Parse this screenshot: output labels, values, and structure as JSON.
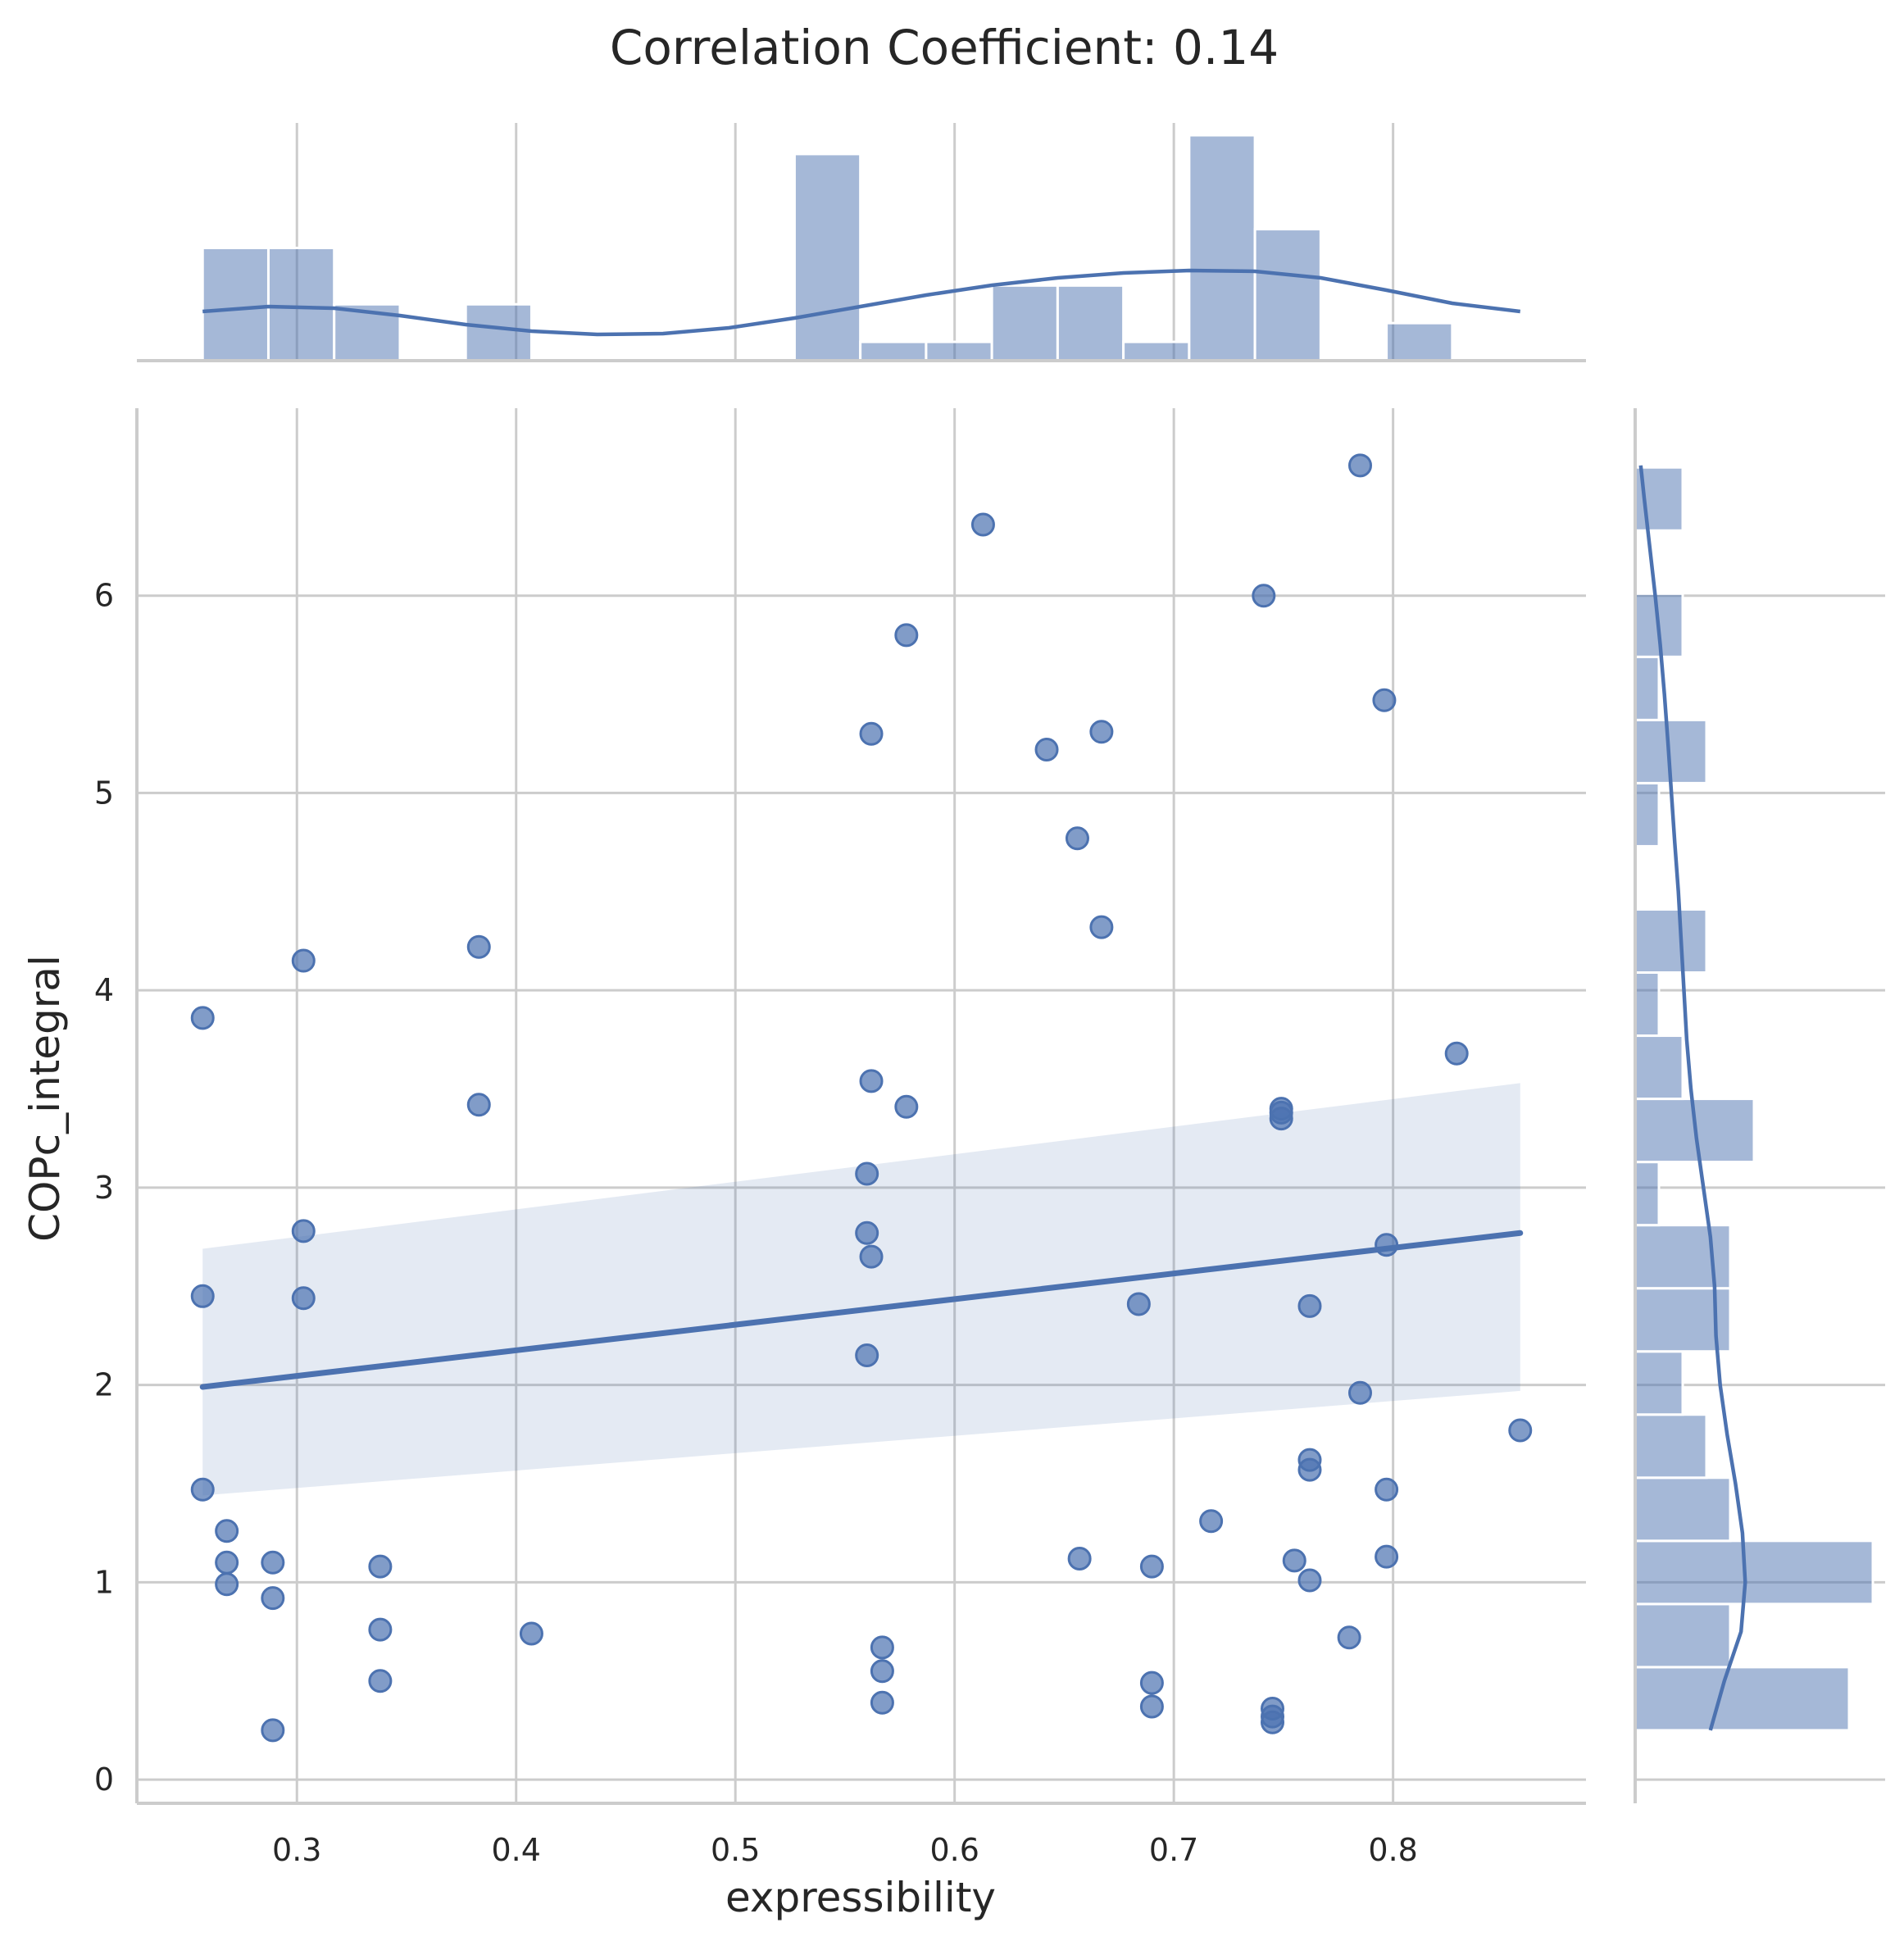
{
  "chart_data": {
    "type": "scatter",
    "title": "Correlation Coefficient: 0.14",
    "xlabel": "expressibility",
    "ylabel": "COPc_integral",
    "xlim": [
      0.227,
      0.888
    ],
    "ylim": [
      -0.12,
      6.95
    ],
    "xticks": [
      "0.3",
      "0.4",
      "0.5",
      "0.6",
      "0.7",
      "0.8"
    ],
    "yticks": [
      "0",
      "1",
      "2",
      "3",
      "4",
      "5",
      "6"
    ],
    "grid": true,
    "color": "#4c72b0",
    "points": [
      [
        0.257,
        3.86
      ],
      [
        0.257,
        2.45
      ],
      [
        0.257,
        1.47
      ],
      [
        0.268,
        1.26
      ],
      [
        0.268,
        1.1
      ],
      [
        0.268,
        0.99
      ],
      [
        0.289,
        1.1
      ],
      [
        0.289,
        0.92
      ],
      [
        0.289,
        0.25
      ],
      [
        0.303,
        4.15
      ],
      [
        0.303,
        2.78
      ],
      [
        0.303,
        2.44
      ],
      [
        0.338,
        1.08
      ],
      [
        0.338,
        0.76
      ],
      [
        0.338,
        0.5
      ],
      [
        0.383,
        4.22
      ],
      [
        0.383,
        3.42
      ],
      [
        0.407,
        0.74
      ],
      [
        0.56,
        3.07
      ],
      [
        0.56,
        2.77
      ],
      [
        0.56,
        2.15
      ],
      [
        0.562,
        5.3
      ],
      [
        0.562,
        3.54
      ],
      [
        0.562,
        2.65
      ],
      [
        0.567,
        0.67
      ],
      [
        0.567,
        0.55
      ],
      [
        0.567,
        0.39
      ],
      [
        0.578,
        5.8
      ],
      [
        0.578,
        3.41
      ],
      [
        0.613,
        6.36
      ],
      [
        0.642,
        5.22
      ],
      [
        0.656,
        4.77
      ],
      [
        0.657,
        1.12
      ],
      [
        0.667,
        5.31
      ],
      [
        0.667,
        4.32
      ],
      [
        0.684,
        2.41
      ],
      [
        0.69,
        1.08
      ],
      [
        0.69,
        0.49
      ],
      [
        0.69,
        0.37
      ],
      [
        0.717,
        1.31
      ],
      [
        0.741,
        6.0
      ],
      [
        0.745,
        0.36
      ],
      [
        0.745,
        0.32
      ],
      [
        0.745,
        0.29
      ],
      [
        0.749,
        3.4
      ],
      [
        0.749,
        3.38
      ],
      [
        0.749,
        3.35
      ],
      [
        0.755,
        1.11
      ],
      [
        0.762,
        2.4
      ],
      [
        0.762,
        1.62
      ],
      [
        0.762,
        1.57
      ],
      [
        0.762,
        1.01
      ],
      [
        0.78,
        0.72
      ],
      [
        0.785,
        6.66
      ],
      [
        0.785,
        1.96
      ],
      [
        0.796,
        5.47
      ],
      [
        0.797,
        2.71
      ],
      [
        0.797,
        1.47
      ],
      [
        0.797,
        1.13
      ],
      [
        0.829,
        3.68
      ],
      [
        0.858,
        1.77
      ]
    ],
    "regression": {
      "x": [
        0.257,
        0.858
      ],
      "y": [
        1.99,
        2.77
      ],
      "ci_lower": [
        1.44,
        1.97
      ],
      "ci_upper": [
        2.69,
        3.53
      ]
    },
    "x_histogram": {
      "bin_edges": [
        0.257,
        0.287,
        0.317,
        0.347,
        0.377,
        0.407,
        0.437,
        0.467,
        0.497,
        0.527,
        0.557,
        0.587,
        0.617,
        0.647,
        0.677,
        0.707,
        0.737,
        0.767,
        0.797,
        0.827,
        0.857
      ],
      "counts": [
        6,
        6,
        3,
        0,
        3,
        0,
        0,
        0,
        0,
        11,
        1,
        1,
        4,
        4,
        1,
        12,
        7,
        0,
        2,
        0
      ],
      "kde_x": [
        0.257,
        0.287,
        0.317,
        0.347,
        0.377,
        0.407,
        0.437,
        0.467,
        0.497,
        0.527,
        0.557,
        0.587,
        0.617,
        0.647,
        0.677,
        0.707,
        0.737,
        0.767,
        0.797,
        0.827,
        0.858
      ],
      "kde_density": [
        0.6,
        0.66,
        0.64,
        0.55,
        0.44,
        0.36,
        0.32,
        0.33,
        0.4,
        0.52,
        0.66,
        0.8,
        0.92,
        1.01,
        1.07,
        1.1,
        1.09,
        1.01,
        0.86,
        0.7,
        0.6
      ]
    },
    "y_histogram": {
      "bin_edges": [
        0.25,
        0.57,
        0.89,
        1.21,
        1.53,
        1.85,
        2.17,
        2.49,
        2.81,
        3.13,
        3.45,
        3.77,
        4.09,
        4.41,
        4.73,
        5.05,
        5.37,
        5.69,
        6.01,
        6.33,
        6.65
      ],
      "counts": [
        9,
        4,
        10,
        4,
        3,
        2,
        4,
        4,
        1,
        5,
        2,
        1,
        3,
        0,
        1,
        3,
        1,
        2,
        0,
        2
      ],
      "kde_y": [
        0.25,
        0.5,
        0.75,
        1.0,
        1.25,
        1.5,
        1.75,
        2.0,
        2.25,
        2.5,
        2.75,
        3.0,
        3.25,
        3.5,
        3.75,
        4.0,
        4.25,
        4.5,
        4.75,
        5.0,
        5.25,
        5.5,
        5.75,
        6.0,
        6.25,
        6.5,
        6.66
      ],
      "kde_density": [
        2.7,
        3.2,
        3.8,
        3.95,
        3.85,
        3.6,
        3.3,
        3.05,
        2.9,
        2.85,
        2.7,
        2.45,
        2.2,
        2.0,
        1.85,
        1.75,
        1.65,
        1.55,
        1.42,
        1.3,
        1.18,
        1.05,
        0.9,
        0.72,
        0.52,
        0.32,
        0.2
      ]
    }
  }
}
